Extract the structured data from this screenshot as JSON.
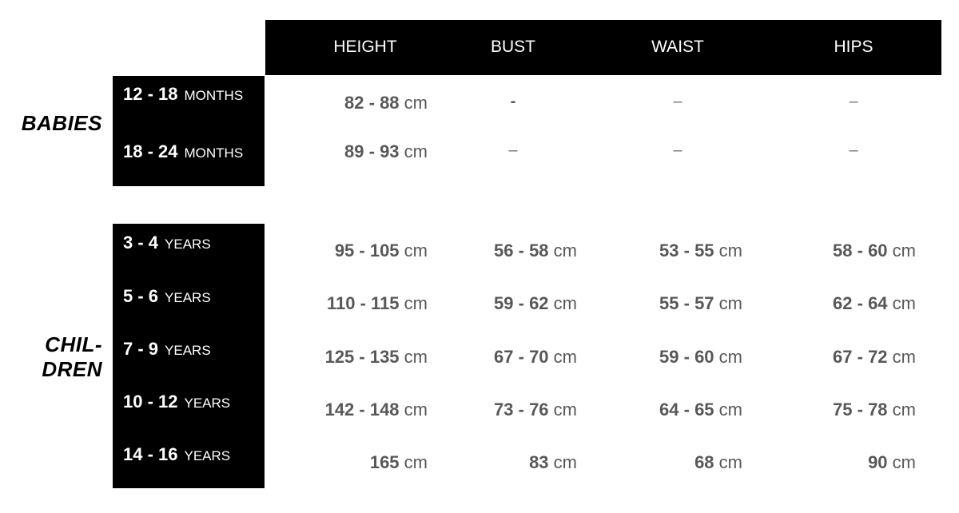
{
  "columns": [
    "HEIGHT",
    "BUST",
    "WAIST",
    "HIPS"
  ],
  "groups": [
    {
      "label_lines": [
        "BABIES"
      ],
      "unit": "MONTHS",
      "rows": [
        {
          "age": "12 - 18",
          "unit": "MONTHS",
          "height": "82 - 88",
          "bust": "-",
          "waist": "–",
          "hips": "–"
        },
        {
          "age": "18 - 24",
          "unit": "MONTHS",
          "height": "89 - 93",
          "bust": "–",
          "waist": "–",
          "hips": "–"
        }
      ]
    },
    {
      "label_lines": [
        "CHIL-",
        "DREN"
      ],
      "rows": [
        {
          "age": "3 - 4",
          "unit": "YEARS",
          "height": "95 - 105",
          "bust": "56 - 58",
          "waist": "53 - 55",
          "hips": "58 - 60"
        },
        {
          "age": "5 - 6",
          "unit": "YEARS",
          "height": "110 - 115",
          "bust": "59 - 62",
          "waist": "55 - 57",
          "hips": "62 - 64"
        },
        {
          "age": "7 - 9",
          "unit": "YEARS",
          "height": "125 - 135",
          "bust": "67 - 70",
          "waist": "59 - 60",
          "hips": "67 - 72"
        },
        {
          "age": "10 - 12",
          "unit": "YEARS",
          "height": "142 - 148",
          "bust": "73 - 76",
          "waist": "64 - 65",
          "hips": "75 - 78"
        },
        {
          "age": "14 - 16",
          "unit": "YEARS",
          "height": "165",
          "bust": "83",
          "waist": "68",
          "hips": "90"
        }
      ]
    }
  ],
  "unit_cm": "cm"
}
